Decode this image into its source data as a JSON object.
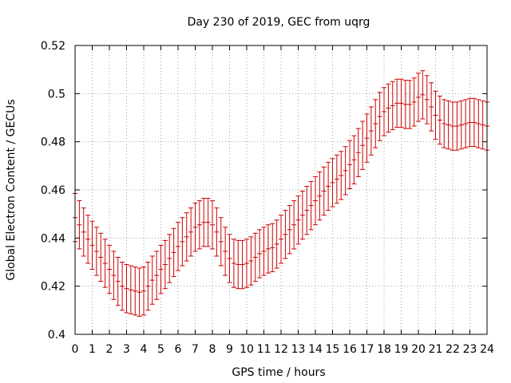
{
  "chart_data": {
    "type": "scatter",
    "title": "Day 230 of 2019, GEC from uqrg",
    "xlabel": "GPS time / hours",
    "ylabel": "Global Electron Content / GECUs",
    "xlim": [
      0,
      24
    ],
    "ylim": [
      0.4,
      0.52
    ],
    "xticks": [
      0,
      1,
      2,
      3,
      4,
      5,
      6,
      7,
      8,
      9,
      10,
      11,
      12,
      13,
      14,
      15,
      16,
      17,
      18,
      19,
      20,
      21,
      22,
      23,
      24
    ],
    "yticks": [
      0.4,
      0.42,
      0.44,
      0.46,
      0.48,
      0.5,
      0.52
    ],
    "ytick_labels": [
      "0.4",
      "0.42",
      "0.44",
      "0.46",
      "0.48",
      "0.5",
      "0.52"
    ],
    "grid": true,
    "series": [
      {
        "name": "GEC",
        "color": "#cc0000",
        "error": 0.01,
        "x": [
          0,
          0.25,
          0.5,
          0.75,
          1,
          1.25,
          1.5,
          1.75,
          2,
          2.25,
          2.5,
          2.75,
          3,
          3.25,
          3.5,
          3.75,
          4,
          4.25,
          4.5,
          4.75,
          5,
          5.25,
          5.5,
          5.75,
          6,
          6.25,
          6.5,
          6.75,
          7,
          7.25,
          7.5,
          7.75,
          8,
          8.25,
          8.5,
          8.75,
          9,
          9.25,
          9.5,
          9.75,
          10,
          10.25,
          10.5,
          10.75,
          11,
          11.25,
          11.5,
          11.75,
          12,
          12.25,
          12.5,
          12.75,
          13,
          13.25,
          13.5,
          13.75,
          14,
          14.25,
          14.5,
          14.75,
          15,
          15.25,
          15.5,
          15.75,
          16,
          16.25,
          16.5,
          16.75,
          17,
          17.25,
          17.5,
          17.75,
          18,
          18.25,
          18.5,
          18.75,
          19,
          19.25,
          19.5,
          19.75,
          20,
          20.25,
          20.5,
          20.75,
          21,
          21.25,
          21.5,
          21.75,
          22,
          22.25,
          22.5,
          22.75,
          23,
          23.25,
          23.5,
          23.75,
          24
        ],
        "y": [
          0.4485,
          0.4455,
          0.4425,
          0.4395,
          0.437,
          0.4345,
          0.432,
          0.4295,
          0.427,
          0.4245,
          0.422,
          0.42,
          0.419,
          0.4185,
          0.418,
          0.4175,
          0.418,
          0.42,
          0.4225,
          0.4245,
          0.427,
          0.429,
          0.4315,
          0.434,
          0.4365,
          0.4385,
          0.4405,
          0.4425,
          0.4445,
          0.4455,
          0.4465,
          0.4465,
          0.4455,
          0.4425,
          0.4385,
          0.4345,
          0.4315,
          0.4295,
          0.429,
          0.429,
          0.4295,
          0.4305,
          0.432,
          0.4335,
          0.4345,
          0.4355,
          0.436,
          0.4375,
          0.4395,
          0.4415,
          0.4435,
          0.4455,
          0.4475,
          0.4495,
          0.4515,
          0.4535,
          0.4555,
          0.4575,
          0.4595,
          0.4615,
          0.463,
          0.4645,
          0.466,
          0.468,
          0.4705,
          0.4725,
          0.4755,
          0.4785,
          0.4815,
          0.4845,
          0.4875,
          0.4905,
          0.4925,
          0.494,
          0.495,
          0.496,
          0.496,
          0.4955,
          0.4955,
          0.4965,
          0.4985,
          0.4995,
          0.4975,
          0.4945,
          0.491,
          0.489,
          0.4875,
          0.487,
          0.4865,
          0.4865,
          0.487,
          0.4875,
          0.488,
          0.488,
          0.4875,
          0.487,
          0.4865
        ]
      }
    ]
  }
}
